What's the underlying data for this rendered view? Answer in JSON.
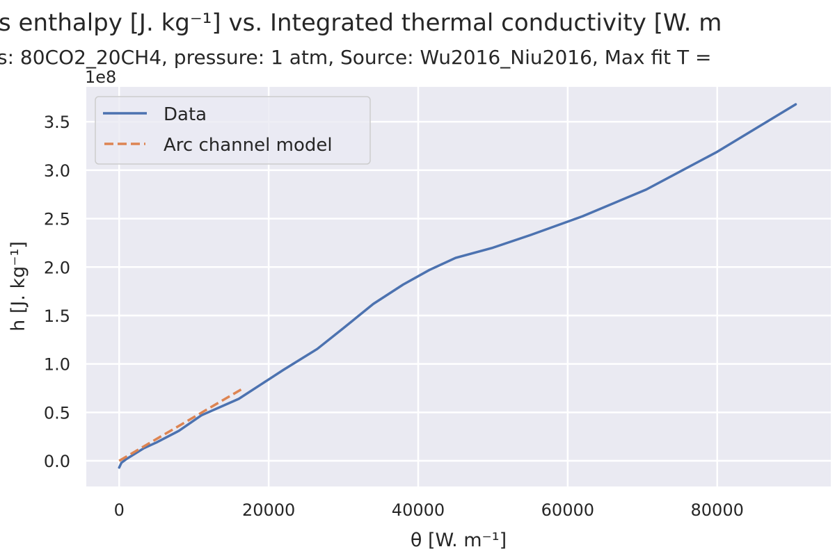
{
  "chart_data": {
    "type": "line",
    "title": "s enthalpy [J. kg⁻¹] vs. Integrated thermal conductivity [W. m",
    "subtitle": "s: 80CO2_20CH4, pressure: 1 atm, Source: Wu2016_Niu2016, Max fit T =",
    "xlabel": "θ [W. m⁻¹]",
    "ylabel": "h [J. kg⁻¹]",
    "y_offset_label": "1e8",
    "xlim": [
      -4400,
      95200
    ],
    "ylim": [
      -0.265,
      3.86
    ],
    "y_scale": 100000000.0,
    "xticks": [
      0,
      20000,
      40000,
      60000,
      80000
    ],
    "xtick_labels": [
      "0",
      "20000",
      "40000",
      "60000",
      "80000"
    ],
    "yticks": [
      0.0,
      0.5,
      1.0,
      1.5,
      2.0,
      2.5,
      3.0,
      3.5
    ],
    "ytick_labels": [
      "0.0",
      "0.5",
      "1.0",
      "1.5",
      "2.0",
      "2.5",
      "3.0",
      "3.5"
    ],
    "grid": true,
    "legend_placement": "upper-left",
    "background": "#eaeaf2",
    "series": [
      {
        "name": "Data",
        "color": "#4c72b0",
        "style": "solid",
        "x": [
          0,
          300,
          1000,
          3300,
          5000,
          8000,
          11000,
          16000,
          19000,
          22000,
          26500,
          30000,
          34000,
          38000,
          41500,
          45000,
          50000,
          55000,
          62000,
          70500,
          80000,
          90500
        ],
        "y": [
          -0.07,
          -0.02,
          0.02,
          0.13,
          0.19,
          0.31,
          0.47,
          0.64,
          0.79,
          0.94,
          1.155,
          1.37,
          1.62,
          1.82,
          1.97,
          2.095,
          2.2,
          2.33,
          2.525,
          2.8,
          3.19,
          3.68
        ]
      },
      {
        "name": "Arc channel model",
        "color": "#dd8452",
        "style": "dashed",
        "x": [
          0,
          16400
        ],
        "y": [
          0.0,
          0.74
        ]
      }
    ]
  }
}
